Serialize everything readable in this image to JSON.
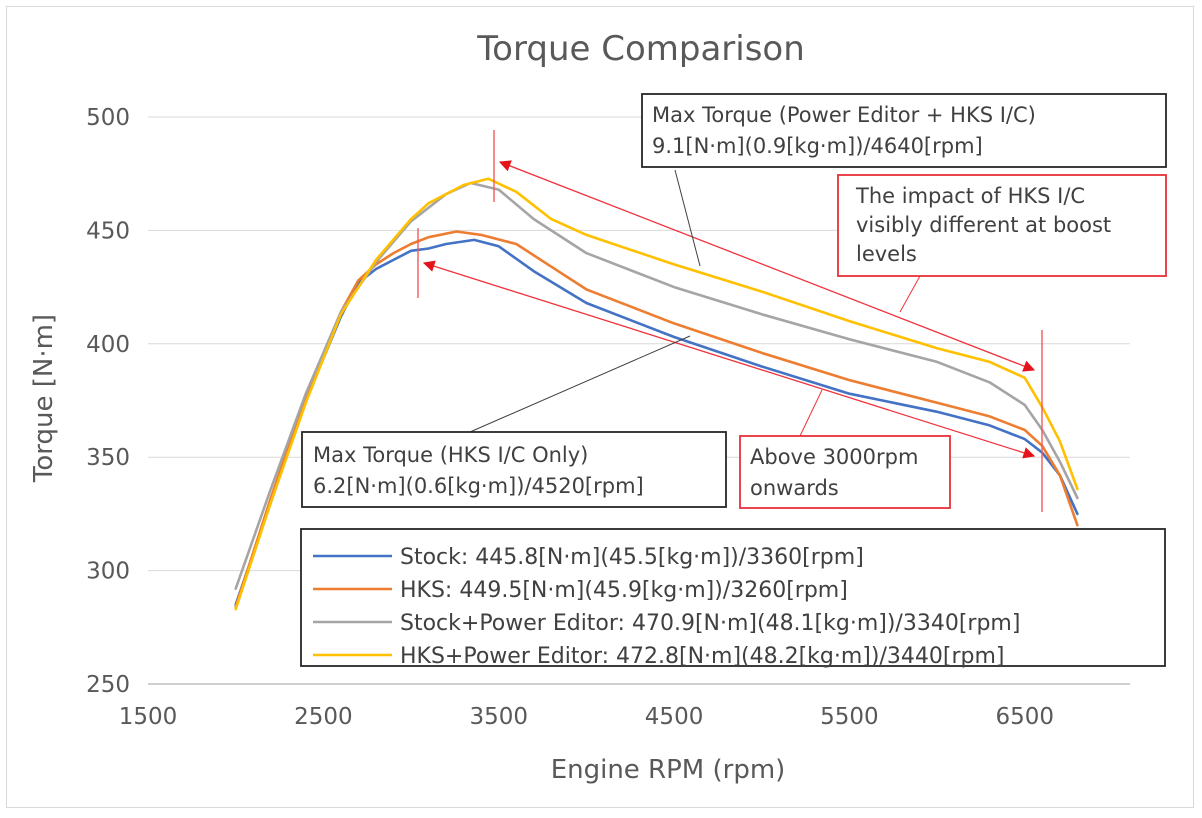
{
  "chart_data": {
    "type": "line",
    "title": "Torque Comparison",
    "xlabel": "Engine RPM (rpm)",
    "ylabel": "Torque [N·m]",
    "xlim": [
      1500,
      7100
    ],
    "ylim": [
      250,
      500
    ],
    "xticks": [
      "1500",
      "2500",
      "3500",
      "4500",
      "5500",
      "6500"
    ],
    "yticks": [
      "250",
      "300",
      "350",
      "400",
      "450",
      "500"
    ],
    "grid": "horizontal",
    "legend_position": "bottom-right",
    "series": [
      {
        "name": "Stock",
        "legend_label": "Stock: 445.8[N·m](45.5[kg·m])/3360[rpm]",
        "color": "#4472C4",
        "x": [
          2000,
          2200,
          2400,
          2600,
          2700,
          2800,
          2900,
          3000,
          3100,
          3200,
          3360,
          3500,
          3700,
          4000,
          4500,
          5000,
          5500,
          6000,
          6300,
          6500,
          6600,
          6700,
          6800
        ],
        "y": [
          285,
          330,
          375,
          412,
          427,
          433,
          437,
          441,
          442,
          444,
          445.8,
          443,
          432,
          418,
          403,
          390,
          378,
          370,
          364,
          358,
          352,
          342,
          325
        ]
      },
      {
        "name": "HKS",
        "legend_label": "HKS: 449.5[N·m](45.9[kg·m])/3260[rpm]",
        "color": "#ED7D31",
        "x": [
          2000,
          2200,
          2400,
          2600,
          2700,
          2800,
          2900,
          3000,
          3100,
          3260,
          3400,
          3600,
          3800,
          4000,
          4500,
          5000,
          5500,
          6000,
          6300,
          6500,
          6600,
          6700,
          6800
        ],
        "y": [
          284,
          332,
          377,
          414,
          428,
          435,
          440,
          444,
          447,
          449.5,
          448,
          444,
          434,
          424,
          409,
          396,
          384,
          374,
          368,
          362,
          355,
          342,
          320
        ]
      },
      {
        "name": "Stock+Power Editor",
        "legend_label": "Stock+Power Editor: 470.9[N·m](48.1[kg·m])/3340[rpm]",
        "color": "#A5A5A5",
        "x": [
          2000,
          2200,
          2400,
          2600,
          2800,
          2900,
          3000,
          3100,
          3200,
          3340,
          3500,
          3700,
          4000,
          4500,
          5000,
          5500,
          6000,
          6300,
          6500,
          6600,
          6700,
          6800
        ],
        "y": [
          292,
          336,
          378,
          414,
          436,
          445,
          454,
          460,
          466,
          470.9,
          468,
          455,
          440,
          425,
          413,
          402,
          392,
          383,
          373,
          362,
          348,
          332
        ]
      },
      {
        "name": "HKS+Power Editor",
        "legend_label": "HKS+Power Editor: 472.8[N·m](48.2[kg·m])/3440[rpm]",
        "color": "#FFC000",
        "x": [
          2000,
          2200,
          2400,
          2600,
          2800,
          2900,
          3000,
          3100,
          3200,
          3300,
          3440,
          3600,
          3800,
          4000,
          4500,
          5000,
          5500,
          6000,
          6300,
          6500,
          6600,
          6700,
          6800
        ],
        "y": [
          283,
          330,
          374,
          413,
          437,
          446,
          455,
          462,
          466,
          470,
          472.8,
          467,
          455,
          448,
          435,
          423,
          410,
          398,
          392,
          385,
          372,
          357,
          336
        ]
      }
    ],
    "annotations": [
      {
        "id": "pe",
        "lines": [
          "Max Torque (Power Editor + HKS I/C)",
          "9.1[N·m](0.9[kg·m])/4640[rpm]"
        ]
      },
      {
        "id": "impact",
        "lines": [
          "The impact of HKS I/C",
          "visibly different at boost",
          "levels"
        ]
      },
      {
        "id": "hks",
        "lines": [
          "Max Torque (HKS I/C Only)",
          "6.2[N·m](0.6[kg·m])/4520[rpm]"
        ]
      },
      {
        "id": "above",
        "lines": [
          "Above 3000rpm",
          "onwards"
        ]
      }
    ],
    "annotation_colors": {
      "box_black": "#262626",
      "box_red": "#E8303A",
      "arrow": "#F0323C",
      "marker": "#F25A5A"
    }
  }
}
